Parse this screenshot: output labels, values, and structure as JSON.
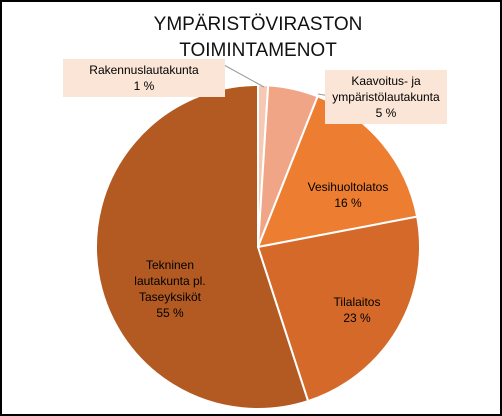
{
  "chart_data": {
    "type": "pie",
    "title": "YMPÄRISTÖVIRASTON TOIMINTAMENOT",
    "categories": [
      "Rakennuslautakunta",
      "Kaavoitus- ja ympäristölautakunta",
      "Vesihuoltolatos",
      "Tilalaitos",
      "Tekninen lautakunta pl. Taseyksiköt"
    ],
    "values": [
      1,
      5,
      16,
      23,
      55
    ],
    "value_labels": [
      "1 %",
      "5 %",
      "16 %",
      "23 %",
      "55 %"
    ],
    "colors": [
      "#f6c9b4",
      "#f0a586",
      "#ed7d31",
      "#d4692a",
      "#b35a22"
    ]
  }
}
